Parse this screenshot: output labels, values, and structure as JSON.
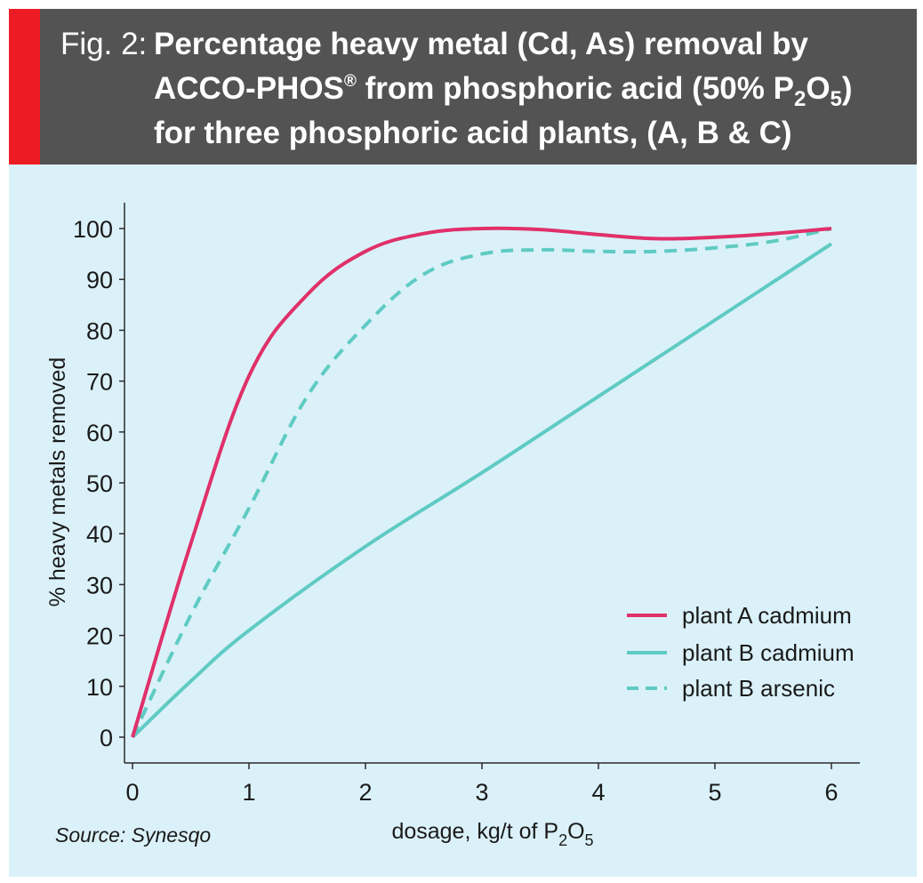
{
  "header": {
    "fig_label": "Fig. 2:",
    "title_line1": "Percentage heavy metal (Cd, As) removal by",
    "title_line2_a": "ACCO-PHOS",
    "title_line2_reg": "®",
    "title_line2_b": " from phosphoric acid (50% P",
    "title_line2_sub2": "2",
    "title_line2_c": "O",
    "title_line2_sub5": "5",
    "title_line2_d": ")",
    "title_line3": "for three phosphoric acid plants, (A, B & C)"
  },
  "source": "Source: Synesqo",
  "colors": {
    "header_bg": "#545354",
    "accent_red": "#ed1c24",
    "plot_bg": "#dbf1f9",
    "plant_a_cadmium": "#e0306a",
    "plant_b": "#5fcbc3"
  },
  "chart_data": {
    "type": "line",
    "xlabel": "dosage, kg/t of P2O5",
    "xlabel_parts": {
      "main": "dosage, kg/t of P",
      "sub1": "2",
      "mid": "O",
      "sub2": "5"
    },
    "ylabel": "% heavy metals removed",
    "xlim": [
      0,
      6
    ],
    "ylim": [
      0,
      100
    ],
    "x_ticks": [
      0,
      1,
      2,
      3,
      4,
      5,
      6
    ],
    "y_ticks": [
      0,
      10,
      20,
      30,
      40,
      50,
      60,
      70,
      80,
      90,
      100
    ],
    "grid": false,
    "legend_position": "lower-right",
    "series": [
      {
        "name": "plant A cadmium",
        "style": "solid",
        "color": "#e0306a",
        "points": [
          [
            0,
            0
          ],
          [
            0.5,
            38
          ],
          [
            1,
            71
          ],
          [
            1.5,
            87
          ],
          [
            2,
            95.5
          ],
          [
            2.5,
            99
          ],
          [
            3,
            100
          ],
          [
            3.5,
            99.8
          ],
          [
            4,
            98.8
          ],
          [
            4.5,
            98
          ],
          [
            5,
            98.3
          ],
          [
            5.5,
            99
          ],
          [
            6,
            100
          ]
        ]
      },
      {
        "name": "plant B cadmium",
        "style": "solid",
        "color": "#5fcbc3",
        "points": [
          [
            0,
            0
          ],
          [
            0.5,
            11
          ],
          [
            1,
            21
          ],
          [
            2,
            37.5
          ],
          [
            3,
            52
          ],
          [
            4,
            67
          ],
          [
            5,
            82
          ],
          [
            6,
            97
          ]
        ]
      },
      {
        "name": "plant B arsenic",
        "style": "dashed",
        "color": "#5fcbc3",
        "points": [
          [
            0,
            0
          ],
          [
            0.5,
            24
          ],
          [
            1,
            45
          ],
          [
            1.5,
            67
          ],
          [
            2,
            81
          ],
          [
            2.5,
            91
          ],
          [
            3,
            95
          ],
          [
            3.5,
            95.8
          ],
          [
            4,
            95.5
          ],
          [
            4.5,
            95.5
          ],
          [
            5,
            96.2
          ],
          [
            5.5,
            97.5
          ],
          [
            6,
            100
          ]
        ]
      }
    ]
  }
}
